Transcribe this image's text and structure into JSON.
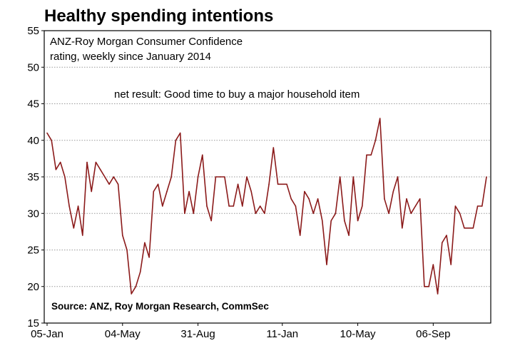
{
  "chart_data": {
    "type": "line",
    "title": "Healthy spending intentions",
    "subtitle_lines": [
      "ANZ-Roy Morgan Consumer Confidence",
      "rating, weekly since January 2014"
    ],
    "annotation": "net result: Good time to buy a major household item",
    "source": "Source: ANZ, Roy Morgan Research, CommSec",
    "xlabel": "",
    "ylabel": "",
    "ylim": [
      15,
      55
    ],
    "yticks": [
      15,
      20,
      25,
      30,
      35,
      40,
      45,
      50,
      55
    ],
    "xtick_labels": [
      {
        "label": "05-Jan",
        "week": 0
      },
      {
        "label": "04-May",
        "week": 17
      },
      {
        "label": "31-Aug",
        "week": 34
      },
      {
        "label": "11-Jan",
        "week": 53
      },
      {
        "label": "10-May",
        "week": 70
      },
      {
        "label": "06-Sep",
        "week": 87
      }
    ],
    "grid": true,
    "gridlines": "horizontal dotted",
    "series": [
      {
        "color": "#8b1a1a",
        "values": [
          41,
          40,
          36,
          37,
          35,
          31,
          28,
          31,
          27,
          37,
          33,
          37,
          36,
          35,
          34,
          35,
          34,
          27,
          25,
          19,
          20,
          22,
          26,
          24,
          33,
          34,
          31,
          33,
          35,
          40,
          41,
          30,
          33,
          30,
          35,
          38,
          31,
          29,
          35,
          35,
          35,
          31,
          31,
          34,
          31,
          35,
          33,
          30,
          31,
          30,
          34,
          39,
          34,
          34,
          34,
          32,
          31,
          27,
          33,
          32,
          30,
          32,
          29,
          23,
          29,
          30,
          35,
          29,
          27,
          35,
          29,
          31,
          38,
          38,
          40,
          43,
          32,
          30,
          33,
          35,
          28,
          32,
          30,
          31,
          32,
          20,
          20,
          23,
          19,
          26,
          27,
          23,
          31,
          30,
          28,
          28,
          28,
          31,
          31,
          35
        ]
      }
    ]
  }
}
